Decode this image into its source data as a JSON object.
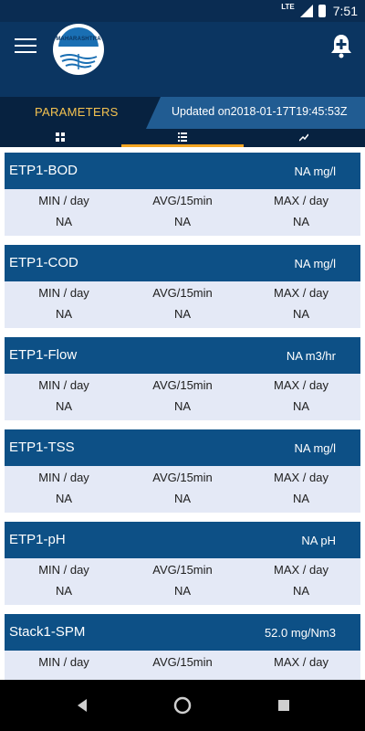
{
  "status": {
    "network": "LTE",
    "time": "7:51"
  },
  "appbar": {
    "logo_text": "MAHARASHTRA"
  },
  "header": {
    "parameters_label": "PARAMETERS",
    "updated": "Updated on2018-01-17T19:45:53Z"
  },
  "tabs": [
    {
      "icon": "grid-icon"
    },
    {
      "icon": "list-icon",
      "active": true
    },
    {
      "icon": "trend-icon"
    }
  ],
  "colors": {
    "primary": "#0b3561",
    "header_bg": "#0d5086",
    "accent": "#f5a623",
    "label": "#f5c350",
    "body_bg": "#e4e9f6"
  },
  "params": [
    {
      "name": "ETP1-BOD",
      "value": "NA mg/l",
      "min_label": "MIN / day",
      "avg_label": "AVG/15min",
      "max_label": "MAX / day",
      "min": "NA",
      "avg": "NA",
      "max": "NA"
    },
    {
      "name": "ETP1-COD",
      "value": "NA mg/l",
      "min_label": "MIN / day",
      "avg_label": "AVG/15min",
      "max_label": "MAX / day",
      "min": "NA",
      "avg": "NA",
      "max": "NA"
    },
    {
      "name": "ETP1-Flow",
      "value": "NA m3/hr",
      "min_label": "MIN / day",
      "avg_label": "AVG/15min",
      "max_label": "MAX / day",
      "min": "NA",
      "avg": "NA",
      "max": "NA"
    },
    {
      "name": "ETP1-TSS",
      "value": "NA mg/l",
      "min_label": "MIN / day",
      "avg_label": "AVG/15min",
      "max_label": "MAX / day",
      "min": "NA",
      "avg": "NA",
      "max": "NA"
    },
    {
      "name": "ETP1-pH",
      "value": "NA pH",
      "min_label": "MIN / day",
      "avg_label": "AVG/15min",
      "max_label": "MAX / day",
      "min": "NA",
      "avg": "NA",
      "max": "NA"
    },
    {
      "name": "Stack1-SPM",
      "value": "52.0 mg/Nm3",
      "min_label": "MIN / day",
      "avg_label": "AVG/15min",
      "max_label": "MAX / day",
      "min": "",
      "avg": "",
      "max": ""
    }
  ]
}
